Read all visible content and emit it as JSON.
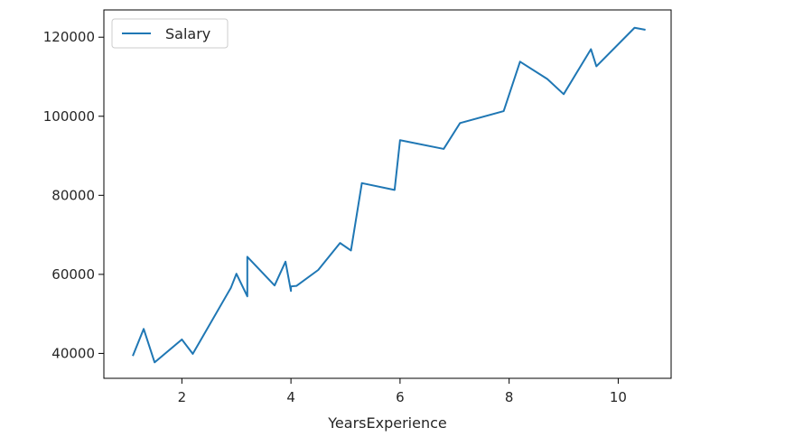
{
  "chart_data": {
    "type": "line",
    "title": "",
    "xlabel": "YearsExperience",
    "ylabel": "",
    "xlim": [
      0.57,
      10.97
    ],
    "ylim": [
      33700,
      126900
    ],
    "xticks": [
      2,
      4,
      6,
      8,
      10
    ],
    "xtick_labels": [
      "2",
      "4",
      "6",
      "8",
      "10"
    ],
    "yticks": [
      40000,
      60000,
      80000,
      100000,
      120000
    ],
    "ytick_labels": [
      "40000",
      "60000",
      "80000",
      "100000",
      "120000"
    ],
    "grid": false,
    "legend_position": "upper-left",
    "series": [
      {
        "name": "Salary",
        "color": "#1f77b4",
        "x": [
          1.1,
          1.3,
          1.5,
          2.0,
          2.2,
          2.9,
          3.0,
          3.2,
          3.2,
          3.7,
          3.9,
          4.0,
          4.0,
          4.1,
          4.5,
          4.9,
          5.1,
          5.3,
          5.9,
          6.0,
          6.8,
          7.1,
          7.9,
          8.2,
          8.7,
          9.0,
          9.5,
          9.6,
          10.3,
          10.5
        ],
        "y": [
          39343,
          46205,
          37731,
          43525,
          39891,
          56642,
          60150,
          54445,
          64445,
          57189,
          63218,
          55794,
          56957,
          57081,
          61111,
          67938,
          66029,
          83088,
          81363,
          93940,
          91738,
          98273,
          101302,
          113812,
          109431,
          105582,
          116969,
          112635,
          122391,
          121872
        ]
      }
    ]
  }
}
